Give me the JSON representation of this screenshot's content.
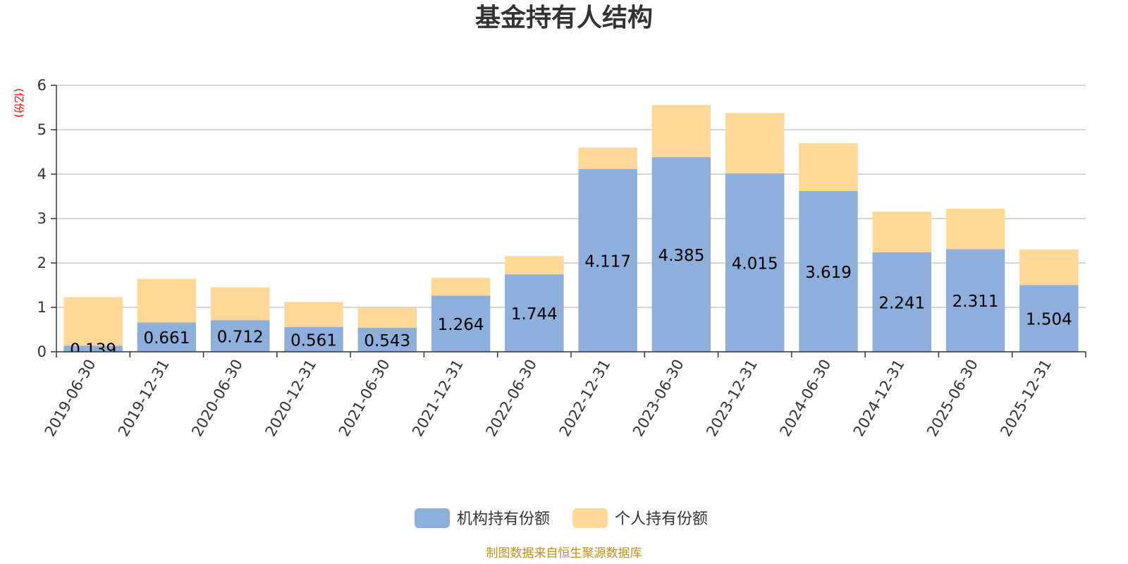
{
  "chart_data": {
    "type": "bar",
    "stacked": true,
    "title": "基金持有人结构",
    "unit_label": "(亿份)",
    "categories": [
      "2019-06-30",
      "2019-12-31",
      "2020-06-30",
      "2020-12-31",
      "2021-06-30",
      "2021-12-31",
      "2022-06-30",
      "2022-12-31",
      "2023-06-30",
      "2023-12-31",
      "2024-06-30",
      "2024-12-31",
      "2025-06-30",
      "2025-12-31"
    ],
    "series": [
      {
        "name": "机构持有份额",
        "color": "#8eaedb",
        "values": [
          0.139,
          0.661,
          0.712,
          0.561,
          0.543,
          1.264,
          1.744,
          4.117,
          4.385,
          4.015,
          3.619,
          2.241,
          2.311,
          1.504
        ],
        "labels": [
          "0.139",
          "0.661",
          "0.712",
          "0.561",
          "0.543",
          "1.264",
          "1.744",
          "4.117",
          "4.385",
          "4.015",
          "3.619",
          "2.241",
          "2.311",
          "1.504"
        ]
      },
      {
        "name": "个人持有份额",
        "color": "#ffd898",
        "values": [
          1.09,
          0.98,
          0.74,
          0.56,
          0.45,
          0.4,
          0.41,
          0.48,
          1.17,
          1.36,
          1.08,
          0.91,
          0.91,
          0.8
        ]
      }
    ],
    "ylim": [
      0,
      6
    ],
    "yticks": [
      "0",
      "1",
      "2",
      "3",
      "4",
      "5",
      "6"
    ],
    "grid": true,
    "legend_position": "bottom",
    "source": "制图数据来自恒生聚源数据库"
  }
}
